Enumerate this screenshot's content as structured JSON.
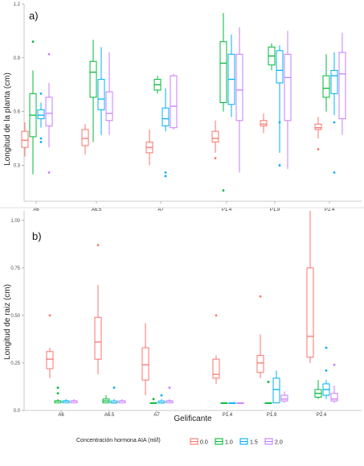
{
  "chart_data": [
    {
      "type": "box",
      "panel_label": "a)",
      "ylabel": "Longitud de la planta (cm)",
      "ylim": [
        0.1,
        1.2
      ],
      "yticks": [
        0.3,
        0.6,
        0.9,
        1.2
      ],
      "categories": [
        "A6",
        "A6.5",
        "A7",
        "P1.4",
        "P1.9",
        "P2.4"
      ],
      "series": [
        {
          "name": "0.0",
          "color": "#F8766D",
          "boxes": [
            {
              "min": 0.35,
              "q1": 0.4,
              "med": 0.44,
              "q3": 0.49,
              "max": 0.54,
              "outliers": []
            },
            {
              "min": 0.36,
              "q1": 0.41,
              "med": 0.45,
              "q3": 0.5,
              "max": 0.53,
              "outliers": []
            },
            {
              "min": 0.3,
              "q1": 0.37,
              "med": 0.4,
              "q3": 0.43,
              "max": 0.5,
              "outliers": []
            },
            {
              "min": 0.37,
              "q1": 0.43,
              "med": 0.45,
              "q3": 0.49,
              "max": 0.55,
              "outliers": [
                0.34
              ]
            },
            {
              "min": 0.48,
              "q1": 0.52,
              "med": 0.53,
              "q3": 0.55,
              "max": 0.59,
              "outliers": []
            },
            {
              "min": 0.45,
              "q1": 0.5,
              "med": 0.51,
              "q3": 0.53,
              "max": 0.57,
              "outliers": [
                0.39
              ]
            }
          ]
        },
        {
          "name": "1.0",
          "color": "#00BA38",
          "boxes": [
            {
              "min": 0.25,
              "q1": 0.46,
              "med": 0.58,
              "q3": 0.7,
              "max": 0.83,
              "outliers": [
                0.99
              ]
            },
            {
              "min": 0.43,
              "q1": 0.68,
              "med": 0.82,
              "q3": 0.88,
              "max": 1.0,
              "outliers": []
            },
            {
              "min": 0.7,
              "q1": 0.72,
              "med": 0.75,
              "q3": 0.78,
              "max": 0.8,
              "outliers": []
            },
            {
              "min": 0.6,
              "q1": 0.65,
              "med": 0.87,
              "q3": 0.99,
              "max": 1.15,
              "outliers": [
                0.16
              ]
            },
            {
              "min": 0.83,
              "q1": 0.86,
              "med": 0.91,
              "q3": 0.96,
              "max": 0.98,
              "outliers": []
            },
            {
              "min": 0.6,
              "q1": 0.68,
              "med": 0.73,
              "q3": 0.8,
              "max": 0.92,
              "outliers": []
            }
          ]
        },
        {
          "name": "1.5",
          "color": "#00B0F6",
          "boxes": [
            {
              "min": 0.51,
              "q1": 0.56,
              "med": 0.58,
              "q3": 0.61,
              "max": 0.65,
              "outliers": [
                0.7,
                0.45,
                0.43
              ]
            },
            {
              "min": 0.47,
              "q1": 0.61,
              "med": 0.67,
              "q3": 0.78,
              "max": 0.96,
              "outliers": []
            },
            {
              "min": 0.49,
              "q1": 0.52,
              "med": 0.56,
              "q3": 0.62,
              "max": 0.73,
              "outliers": [
                0.26,
                0.24
              ]
            },
            {
              "min": 0.57,
              "q1": 0.64,
              "med": 0.78,
              "q3": 0.92,
              "max": 1.03,
              "outliers": []
            },
            {
              "min": 0.37,
              "q1": 0.76,
              "med": 0.83,
              "q3": 0.94,
              "max": 0.97,
              "outliers": [
                0.54,
                0.3
              ]
            },
            {
              "min": 0.58,
              "q1": 0.7,
              "med": 0.8,
              "q3": 0.83,
              "max": 0.93,
              "outliers": [
                0.54,
                0.26
              ]
            }
          ]
        },
        {
          "name": "2.0",
          "color": "#C77CFF",
          "boxes": [
            {
              "min": 0.4,
              "q1": 0.52,
              "med": 0.59,
              "q3": 0.68,
              "max": 0.76,
              "outliers": [
                0.92,
                0.26
              ]
            },
            {
              "min": 0.47,
              "q1": 0.55,
              "med": 0.59,
              "q3": 0.71,
              "max": 0.93,
              "outliers": []
            },
            {
              "min": 0.5,
              "q1": 0.51,
              "med": 0.63,
              "q3": 0.8,
              "max": 0.81,
              "outliers": []
            },
            {
              "min": 0.26,
              "q1": 0.55,
              "med": 0.72,
              "q3": 0.92,
              "max": 1.07,
              "outliers": []
            },
            {
              "min": 0.28,
              "q1": 0.55,
              "med": 0.79,
              "q3": 0.92,
              "max": 1.05,
              "outliers": []
            },
            {
              "min": 0.47,
              "q1": 0.56,
              "med": 0.81,
              "q3": 0.93,
              "max": 1.04,
              "outliers": []
            }
          ]
        }
      ]
    },
    {
      "type": "box",
      "panel_label": "b)",
      "ylabel": "Longitud de raiz (cm)",
      "xlabel": "Gelificante",
      "ylim": [
        0.0,
        1.05
      ],
      "yticks": [
        0.0,
        0.25,
        0.5,
        0.75,
        1.0
      ],
      "ytick_labels": [
        "0.0",
        "0.25",
        "0.50",
        "0.75",
        "1.00"
      ],
      "categories": [
        "A6",
        "A6.5",
        "A7",
        "P1.4",
        "P1.9",
        "P2.4"
      ],
      "legend_title": "Concentración hormona AIA (ml/l)",
      "series": [
        {
          "name": "0.0",
          "color": "#F8766D",
          "boxes": [
            {
              "min": 0.17,
              "q1": 0.22,
              "med": 0.27,
              "q3": 0.31,
              "max": 0.33,
              "outliers": [
                0.5
              ]
            },
            {
              "min": 0.19,
              "q1": 0.27,
              "med": 0.36,
              "q3": 0.49,
              "max": 0.66,
              "outliers": [
                0.87
              ]
            },
            {
              "min": 0.08,
              "q1": 0.16,
              "med": 0.24,
              "q3": 0.33,
              "max": 0.46,
              "outliers": []
            },
            {
              "min": 0.14,
              "q1": 0.17,
              "med": 0.19,
              "q3": 0.27,
              "max": 0.29,
              "outliers": [
                0.5
              ]
            },
            {
              "min": 0.17,
              "q1": 0.2,
              "med": 0.25,
              "q3": 0.29,
              "max": 0.4,
              "outliers": [
                0.6
              ]
            },
            {
              "min": 0.25,
              "q1": 0.28,
              "med": 0.39,
              "q3": 0.75,
              "max": 1.05,
              "outliers": []
            }
          ]
        },
        {
          "name": "1.0",
          "color": "#00BA38",
          "boxes": [
            {
              "min": 0.04,
              "q1": 0.04,
              "med": 0.05,
              "q3": 0.05,
              "max": 0.06,
              "outliers": [
                0.12,
                0.09
              ]
            },
            {
              "min": 0.04,
              "q1": 0.04,
              "med": 0.05,
              "q3": 0.06,
              "max": 0.08,
              "outliers": []
            },
            {
              "min": 0.04,
              "q1": 0.04,
              "med": 0.04,
              "q3": 0.04,
              "max": 0.04,
              "outliers": [
                0.06
              ]
            },
            {
              "min": 0.04,
              "q1": 0.04,
              "med": 0.04,
              "q3": 0.04,
              "max": 0.04,
              "outliers": []
            },
            {
              "min": 0.04,
              "q1": 0.04,
              "med": 0.04,
              "q3": 0.04,
              "max": 0.04,
              "outliers": [
                0.15
              ]
            },
            {
              "min": 0.06,
              "q1": 0.07,
              "med": 0.09,
              "q3": 0.11,
              "max": 0.16,
              "outliers": []
            }
          ]
        },
        {
          "name": "1.5",
          "color": "#00B0F6",
          "boxes": [
            {
              "min": 0.04,
              "q1": 0.04,
              "med": 0.05,
              "q3": 0.05,
              "max": 0.06,
              "outliers": []
            },
            {
              "min": 0.04,
              "q1": 0.04,
              "med": 0.04,
              "q3": 0.05,
              "max": 0.06,
              "outliers": [
                0.12
              ]
            },
            {
              "min": 0.04,
              "q1": 0.04,
              "med": 0.04,
              "q3": 0.05,
              "max": 0.06,
              "outliers": [
                0.08
              ]
            },
            {
              "min": 0.04,
              "q1": 0.04,
              "med": 0.04,
              "q3": 0.04,
              "max": 0.04,
              "outliers": []
            },
            {
              "min": 0.04,
              "q1": 0.04,
              "med": 0.11,
              "q3": 0.17,
              "max": 0.21,
              "outliers": []
            },
            {
              "min": 0.06,
              "q1": 0.08,
              "med": 0.11,
              "q3": 0.14,
              "max": 0.16,
              "outliers": [
                0.33,
                0.21
              ]
            }
          ]
        },
        {
          "name": "2.0",
          "color": "#C77CFF",
          "boxes": [
            {
              "min": 0.04,
              "q1": 0.04,
              "med": 0.05,
              "q3": 0.05,
              "max": 0.06,
              "outliers": []
            },
            {
              "min": 0.04,
              "q1": 0.04,
              "med": 0.05,
              "q3": 0.05,
              "max": 0.06,
              "outliers": []
            },
            {
              "min": 0.04,
              "q1": 0.04,
              "med": 0.05,
              "q3": 0.05,
              "max": 0.06,
              "outliers": [
                0.12
              ]
            },
            {
              "min": 0.04,
              "q1": 0.04,
              "med": 0.04,
              "q3": 0.04,
              "max": 0.04,
              "outliers": []
            },
            {
              "min": 0.04,
              "q1": 0.05,
              "med": 0.06,
              "q3": 0.08,
              "max": 0.1,
              "outliers": []
            },
            {
              "min": 0.04,
              "q1": 0.05,
              "med": 0.06,
              "q3": 0.09,
              "max": 0.13,
              "outliers": [
                0.24
              ]
            }
          ]
        }
      ]
    }
  ]
}
